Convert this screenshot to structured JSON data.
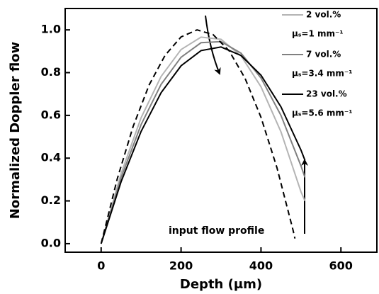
{
  "chart_data": {
    "type": "line",
    "xlabel": "Depth (μm)",
    "ylabel": "Normalized Doppler flow",
    "xlim": [
      -90,
      690
    ],
    "ylim": [
      -0.04,
      1.1
    ],
    "xticks": [
      0,
      200,
      400,
      600
    ],
    "yticks": [
      {
        "value": 0,
        "label": "0.0"
      },
      {
        "value": 0.2,
        "label": "0.2"
      },
      {
        "value": 0.4,
        "label": "0.4"
      },
      {
        "value": 0.6,
        "label": "0.6"
      },
      {
        "value": 0.8,
        "label": "0.8"
      },
      {
        "value": 1,
        "label": "1.0"
      }
    ],
    "series": [
      {
        "name": "2 vol.%",
        "color": "#b4b4b4",
        "dash": false,
        "x": [
          0,
          50,
          100,
          150,
          200,
          250,
          300,
          350,
          400,
          450,
          500,
          510
        ],
        "values": [
          0,
          0.328,
          0.589,
          0.782,
          0.908,
          0.966,
          0.956,
          0.879,
          0.734,
          0.523,
          0.243,
          0.2
        ]
      },
      {
        "name": "7 vol.%",
        "color": "#808080",
        "dash": false,
        "x": [
          0,
          50,
          100,
          150,
          200,
          250,
          300,
          350,
          400,
          450,
          500,
          510
        ],
        "values": [
          0,
          0.309,
          0.557,
          0.745,
          0.872,
          0.94,
          0.945,
          0.891,
          0.775,
          0.6,
          0.364,
          0.31
        ]
      },
      {
        "name": "23 vol.%",
        "color": "#000000",
        "dash": false,
        "x": [
          0,
          50,
          100,
          150,
          200,
          250,
          300,
          350,
          400,
          450,
          500,
          510
        ],
        "values": [
          0,
          0.29,
          0.525,
          0.706,
          0.832,
          0.903,
          0.92,
          0.88,
          0.788,
          0.64,
          0.438,
          0.39
        ]
      },
      {
        "name": "input flow profile",
        "color": "#000000",
        "dash": true,
        "x": [
          0,
          40,
          80,
          120,
          160,
          200,
          240,
          280,
          320,
          360,
          400,
          440,
          480,
          485
        ],
        "values": [
          0,
          0.301,
          0.548,
          0.742,
          0.881,
          0.967,
          1.0,
          0.978,
          0.903,
          0.774,
          0.591,
          0.355,
          0.065,
          0.024
        ]
      }
    ],
    "legend_notes": [
      "μₛ=1 mm⁻¹",
      "μₛ=3.4 mm⁻¹",
      "μₛ=5.6 mm⁻¹"
    ]
  }
}
